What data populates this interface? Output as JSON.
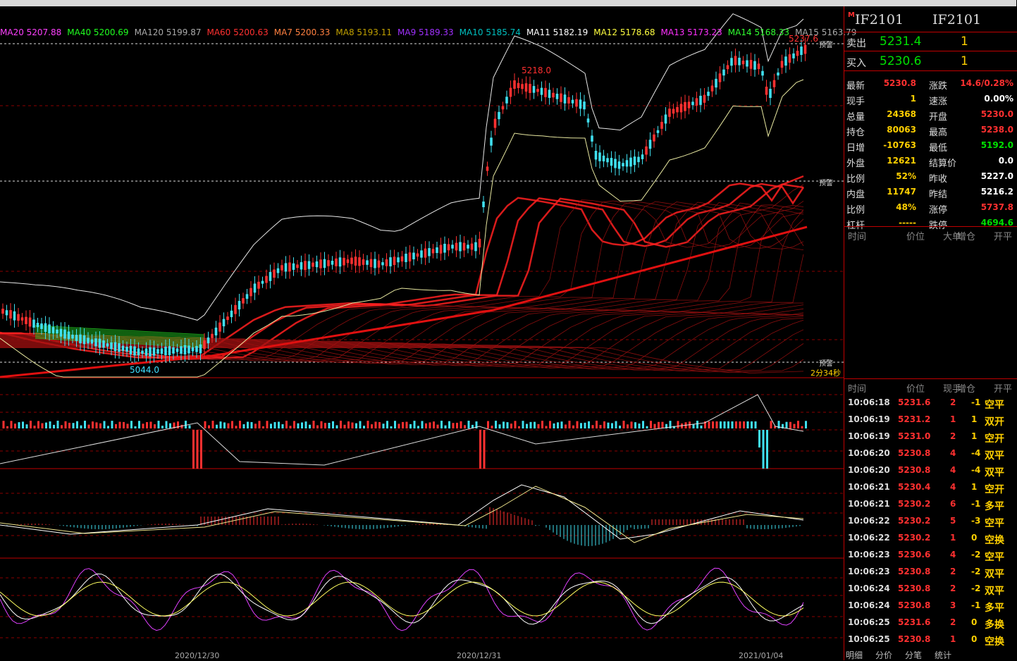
{
  "ma_bar": [
    {
      "t": "MA20 5207.88",
      "c": "#ff40ff"
    },
    {
      "t": "MA40 5200.69",
      "c": "#20ff20"
    },
    {
      "t": "MA120 5199.87",
      "c": "#aaaaaa"
    },
    {
      "t": "MA60 5200.63",
      "c": "#ff3030"
    },
    {
      "t": "MA7 5200.33",
      "c": "#ff8040"
    },
    {
      "t": "MA8 5193.11",
      "c": "#c0a000"
    },
    {
      "t": "MA9 5189.33",
      "c": "#a030ff"
    },
    {
      "t": "MA10 5185.74",
      "c": "#00c0c0"
    },
    {
      "t": "MA11 5182.19",
      "c": "#ffffff"
    },
    {
      "t": "MA12 5178.68",
      "c": "#ffff40"
    },
    {
      "t": "MA13 5173.23",
      "c": "#ff30ff"
    },
    {
      "t": "MA14 5168.33",
      "c": "#30ff30"
    },
    {
      "t": "MA15 5163.79",
      "c": "#aaaaaa"
    }
  ],
  "chart": {
    "high_label": "5237.6",
    "mid_label": "5218.0",
    "low_label": "5044.0",
    "warn_label": "预警",
    "countdown": "2分34秒",
    "dates": [
      "2020/12/30",
      "2020/12/31",
      "2021/01/04"
    ]
  },
  "quote": {
    "symbol_left": "IF2101",
    "symbol_right": "IF2101",
    "badge": "M",
    "sell_label": "卖出",
    "sell_price": "5231.4",
    "sell_vol": "1",
    "buy_label": "买入",
    "buy_price": "5230.6",
    "buy_vol": "1",
    "rows": [
      {
        "l": "最新",
        "v": "5230.8",
        "vc": "#ff3030",
        "l2": "涨跌",
        "v2": "14.6/0.28%",
        "v2c": "#ff3030"
      },
      {
        "l": "现手",
        "v": "1",
        "vc": "#ffd000",
        "l2": "速涨",
        "v2": "0.00%",
        "v2c": "#ffffff"
      },
      {
        "l": "总量",
        "v": "24368",
        "vc": "#ffd000",
        "l2": "开盘",
        "v2": "5230.0",
        "v2c": "#ff3030"
      },
      {
        "l": "持仓",
        "v": "80063",
        "vc": "#ffd000",
        "l2": "最高",
        "v2": "5238.0",
        "v2c": "#ff3030"
      },
      {
        "l": "日增",
        "v": "-10763",
        "vc": "#ffd000",
        "l2": "最低",
        "v2": "5192.0",
        "v2c": "#00e000"
      },
      {
        "l": "外盘",
        "v": "12621",
        "vc": "#ffd000",
        "l2": "结算价",
        "v2": "0.0",
        "v2c": "#ffffff"
      },
      {
        "l": "比例",
        "v": "52%",
        "vc": "#ffd000",
        "l2": "昨收",
        "v2": "5227.0",
        "v2c": "#ffffff"
      },
      {
        "l": "内盘",
        "v": "11747",
        "vc": "#ffd000",
        "l2": "昨结",
        "v2": "5216.2",
        "v2c": "#ffffff"
      },
      {
        "l": "比例",
        "v": "48%",
        "vc": "#ffd000",
        "l2": "涨停",
        "v2": "5737.8",
        "v2c": "#ff3030"
      },
      {
        "l": "杠杆",
        "v": "-----",
        "vc": "#ffd000",
        "l2": "跌停",
        "v2": "4694.6",
        "v2c": "#00e000"
      }
    ]
  },
  "bigorder_headers": [
    "时间",
    "价位",
    "大单",
    "增仓",
    "开平"
  ],
  "tick_headers": [
    "时间",
    "价位",
    "现手",
    "增仓",
    "开平"
  ],
  "ticks": [
    {
      "time": "10:06:18",
      "price": "5231.6",
      "vol": "2",
      "chg": "-1",
      "type": "空平",
      "tc": "#ffd000"
    },
    {
      "time": "10:06:19",
      "price": "5231.2",
      "vol": "1",
      "chg": "1",
      "type": "双开",
      "tc": "#ffd000"
    },
    {
      "time": "10:06:19",
      "price": "5231.0",
      "vol": "2",
      "chg": "1",
      "type": "空开",
      "tc": "#ffd000"
    },
    {
      "time": "10:06:20",
      "price": "5230.8",
      "vol": "4",
      "chg": "-4",
      "type": "双平",
      "tc": "#ffd000"
    },
    {
      "time": "10:06:20",
      "price": "5230.8",
      "vol": "4",
      "chg": "-4",
      "type": "双平",
      "tc": "#ffd000"
    },
    {
      "time": "10:06:21",
      "price": "5230.4",
      "vol": "4",
      "chg": "1",
      "type": "空开",
      "tc": "#ffd000"
    },
    {
      "time": "10:06:21",
      "price": "5230.2",
      "vol": "6",
      "chg": "-1",
      "type": "多平",
      "tc": "#ffd000"
    },
    {
      "time": "10:06:22",
      "price": "5230.2",
      "vol": "5",
      "chg": "-3",
      "type": "空平",
      "tc": "#ffd000"
    },
    {
      "time": "10:06:22",
      "price": "5230.2",
      "vol": "1",
      "chg": "0",
      "type": "空换",
      "tc": "#ffd000"
    },
    {
      "time": "10:06:23",
      "price": "5230.6",
      "vol": "4",
      "chg": "-2",
      "type": "空平",
      "tc": "#ffd000"
    },
    {
      "time": "10:06:23",
      "price": "5230.8",
      "vol": "2",
      "chg": "-2",
      "type": "双平",
      "tc": "#ffd000"
    },
    {
      "time": "10:06:24",
      "price": "5230.8",
      "vol": "2",
      "chg": "-2",
      "type": "双平",
      "tc": "#ffd000"
    },
    {
      "time": "10:06:24",
      "price": "5230.8",
      "vol": "3",
      "chg": "-1",
      "type": "多平",
      "tc": "#ffd000"
    },
    {
      "time": "10:06:25",
      "price": "5231.6",
      "vol": "2",
      "chg": "0",
      "type": "多换",
      "tc": "#ffd000"
    },
    {
      "time": "10:06:25",
      "price": "5230.8",
      "vol": "1",
      "chg": "0",
      "type": "空换",
      "tc": "#ffd000"
    }
  ],
  "tabs": [
    "明细",
    "分价",
    "分笔",
    "统计"
  ]
}
